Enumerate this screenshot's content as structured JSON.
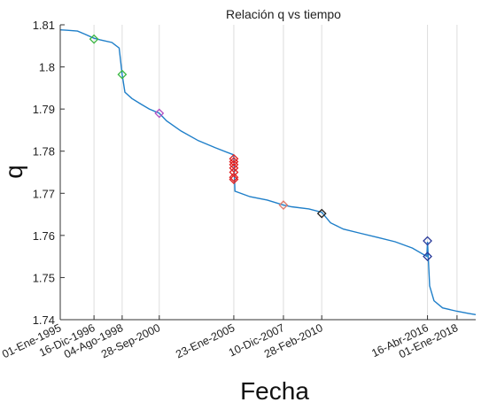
{
  "chart_data": {
    "type": "line",
    "title": "Relación q vs tiempo",
    "xlabel": "Fecha",
    "ylabel": "q",
    "ylim": [
      1.74,
      1.81
    ],
    "xlim": [
      "1995-01-01",
      "2019-02-01"
    ],
    "yticks": [
      "1.74",
      "1.75",
      "1.76",
      "1.77",
      "1.78",
      "1.79",
      "1.8",
      "1.81"
    ],
    "xticks": [
      {
        "date": "1995-01-01",
        "label": "01-Ene-1995"
      },
      {
        "date": "1996-12-16",
        "label": "16-Dic-1996"
      },
      {
        "date": "1998-08-04",
        "label": "04-Ago-1998"
      },
      {
        "date": "2000-09-28",
        "label": "28-Sep-2000"
      },
      {
        "date": "2005-01-23",
        "label": "23-Ene-2005"
      },
      {
        "date": "2007-12-10",
        "label": "10-Dic-2007"
      },
      {
        "date": "2010-02-28",
        "label": "28-Feb-2010"
      },
      {
        "date": "2016-04-16",
        "label": "16-Abr-2016"
      },
      {
        "date": "2018-01-01",
        "label": "01-Ene-2018"
      }
    ],
    "grid": "vertical at x ticks",
    "series": [
      {
        "color": "#1f7fc9",
        "x": [
          "1995-01-01",
          "1995-06-01",
          "1996-01-01",
          "1996-06-01",
          "1996-12-16",
          "1997-05-01",
          "1998-01-01",
          "1998-06-01",
          "1998-08-04",
          "1998-10-01",
          "1999-03-01",
          "1999-09-01",
          "2000-03-01",
          "2000-09-28",
          "2001-03-01",
          "2002-01-01",
          "2003-01-01",
          "2004-01-01",
          "2005-01-01",
          "2005-01-23",
          "2005-02-15",
          "2006-01-01",
          "2007-01-01",
          "2007-12-10",
          "2008-06-01",
          "2009-06-01",
          "2010-02-28",
          "2010-09-01",
          "2011-06-01",
          "2012-06-01",
          "2013-06-01",
          "2014-06-01",
          "2015-06-01",
          "2016-04-01",
          "2016-04-16",
          "2016-06-01",
          "2016-09-01",
          "2017-03-01",
          "2018-01-01",
          "2018-09-01",
          "2019-02-01"
        ],
        "y": [
          1.8088,
          1.8087,
          1.8085,
          1.8078,
          1.8068,
          1.8064,
          1.8058,
          1.8045,
          1.7982,
          1.794,
          1.7925,
          1.7912,
          1.79,
          1.789,
          1.7872,
          1.7848,
          1.7825,
          1.7808,
          1.7792,
          1.7788,
          1.7705,
          1.7692,
          1.7684,
          1.7672,
          1.7668,
          1.7663,
          1.7655,
          1.763,
          1.7615,
          1.7605,
          1.7595,
          1.7585,
          1.757,
          1.755,
          1.7585,
          1.748,
          1.7445,
          1.7428,
          1.742,
          1.7415,
          1.7412
        ]
      }
    ],
    "markers": [
      {
        "x": "1996-12-16",
        "y": 1.8066,
        "color": "#3cb843"
      },
      {
        "x": "1998-08-04",
        "y": 1.7982,
        "color": "#3cb843"
      },
      {
        "x": "2000-09-28",
        "y": 1.789,
        "color": "#b14ec1"
      },
      {
        "x": "2005-01-23",
        "y": 1.7782,
        "color": "#e02020"
      },
      {
        "x": "2005-01-23",
        "y": 1.7775,
        "color": "#e02020"
      },
      {
        "x": "2005-01-23",
        "y": 1.7768,
        "color": "#e02020"
      },
      {
        "x": "2005-01-23",
        "y": 1.776,
        "color": "#e02020"
      },
      {
        "x": "2005-01-23",
        "y": 1.775,
        "color": "#e02020"
      },
      {
        "x": "2005-01-23",
        "y": 1.7738,
        "color": "#e02020"
      },
      {
        "x": "2005-01-23",
        "y": 1.7733,
        "color": "#e02020"
      },
      {
        "x": "2007-12-10",
        "y": 1.7672,
        "color": "#e07a6a"
      },
      {
        "x": "2010-02-28",
        "y": 1.7652,
        "color": "#222222"
      },
      {
        "x": "2016-04-16",
        "y": 1.7587,
        "color": "#2a3a9a"
      },
      {
        "x": "2016-04-16",
        "y": 1.755,
        "color": "#2a3a9a"
      }
    ]
  }
}
